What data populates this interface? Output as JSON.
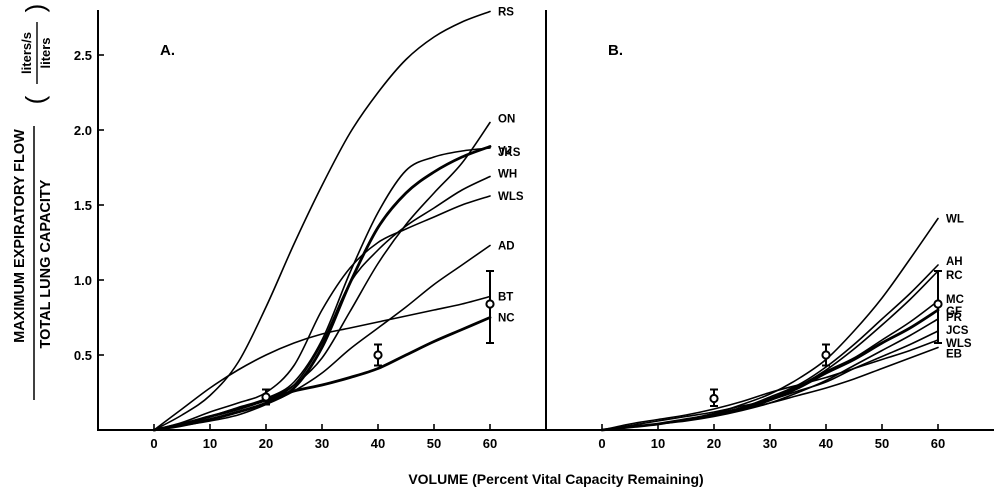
{
  "y_axis": {
    "title_top": "MAXIMUM EXPIRATORY FLOW",
    "title_bottom": "TOTAL LUNG CAPACITY",
    "unit_top": "liters/s",
    "unit_bottom": "liters",
    "paren_open": "(",
    "paren_close": ")"
  },
  "x_axis": {
    "title": "VOLUME (Percent Vital Capacity Remaining)"
  },
  "chart_data": [
    {
      "type": "line",
      "panel": "A.",
      "xlim": [
        -10,
        70
      ],
      "ylim": [
        0,
        2.8
      ],
      "x_ticks": [
        0,
        10,
        20,
        30,
        40,
        50,
        60
      ],
      "x_tick_labels": [
        "0",
        "10",
        "20",
        "30",
        "40",
        "50",
        "60"
      ],
      "y_ticks": [
        0.5,
        1.0,
        1.5,
        2.0,
        2.5
      ],
      "y_tick_labels": [
        "0.5",
        "1.0",
        "1.5",
        "2.0",
        "2.5"
      ],
      "series": [
        {
          "name": "RS",
          "heavy": false,
          "x": [
            0,
            5,
            10,
            15,
            20,
            25,
            30,
            35,
            40,
            45,
            50,
            55,
            60
          ],
          "y": [
            0,
            0.1,
            0.23,
            0.45,
            0.82,
            1.24,
            1.63,
            1.98,
            2.25,
            2.47,
            2.62,
            2.72,
            2.79
          ]
        },
        {
          "name": "ON",
          "heavy": false,
          "x": [
            0,
            5,
            10,
            15,
            20,
            25,
            30,
            35,
            40,
            45,
            50,
            55,
            60
          ],
          "y": [
            0,
            0.04,
            0.09,
            0.14,
            0.2,
            0.3,
            0.48,
            0.79,
            1.11,
            1.37,
            1.58,
            1.78,
            2.05
          ]
        },
        {
          "name": "VJ",
          "heavy": true,
          "x": [
            0,
            5,
            10,
            15,
            20,
            25,
            30,
            35,
            40,
            45,
            50,
            55,
            60
          ],
          "y": [
            0,
            0.03,
            0.07,
            0.12,
            0.18,
            0.28,
            0.55,
            0.98,
            1.35,
            1.58,
            1.72,
            1.82,
            1.89
          ]
        },
        {
          "name": "JKS",
          "heavy": false,
          "x": [
            0,
            5,
            10,
            15,
            20,
            25,
            30,
            35,
            40,
            45,
            50,
            55,
            60
          ],
          "y": [
            0,
            0.04,
            0.09,
            0.15,
            0.21,
            0.32,
            0.6,
            1.05,
            1.45,
            1.73,
            1.82,
            1.86,
            1.88
          ]
        },
        {
          "name": "WH",
          "heavy": false,
          "x": [
            0,
            5,
            10,
            15,
            20,
            25,
            30,
            35,
            40,
            45,
            50,
            55,
            60
          ],
          "y": [
            0,
            0.04,
            0.09,
            0.14,
            0.2,
            0.3,
            0.58,
            0.98,
            1.2,
            1.36,
            1.48,
            1.6,
            1.69
          ]
        },
        {
          "name": "WLS",
          "heavy": false,
          "x": [
            0,
            5,
            10,
            15,
            20,
            25,
            30,
            35,
            40,
            45,
            50,
            55,
            60
          ],
          "y": [
            0,
            0.05,
            0.12,
            0.18,
            0.25,
            0.43,
            0.8,
            1.08,
            1.25,
            1.34,
            1.42,
            1.5,
            1.56
          ]
        },
        {
          "name": "AD",
          "heavy": false,
          "x": [
            0,
            5,
            10,
            15,
            20,
            25,
            30,
            35,
            40,
            45,
            50,
            55,
            60
          ],
          "y": [
            0,
            0.03,
            0.06,
            0.1,
            0.17,
            0.26,
            0.38,
            0.54,
            0.68,
            0.82,
            0.97,
            1.1,
            1.23
          ]
        },
        {
          "name": "BT",
          "heavy": false,
          "x": [
            0,
            5,
            10,
            15,
            20,
            25,
            30,
            35,
            40,
            45,
            50,
            55,
            60
          ],
          "y": [
            0,
            0.14,
            0.28,
            0.4,
            0.5,
            0.58,
            0.64,
            0.68,
            0.72,
            0.76,
            0.8,
            0.84,
            0.89
          ]
        },
        {
          "name": "NC",
          "heavy": true,
          "x": [
            0,
            5,
            10,
            15,
            20,
            25,
            30,
            35,
            40,
            45,
            50,
            55,
            60
          ],
          "y": [
            0,
            0.04,
            0.09,
            0.14,
            0.2,
            0.26,
            0.3,
            0.35,
            0.41,
            0.5,
            0.59,
            0.67,
            0.75
          ]
        }
      ],
      "points": [
        {
          "x": 20,
          "y": 0.22,
          "err_low": 0.17,
          "err_high": 0.27
        },
        {
          "x": 40,
          "y": 0.5,
          "err_low": 0.43,
          "err_high": 0.57
        },
        {
          "x": 60,
          "y": 0.84,
          "err_low": 0.58,
          "err_high": 1.06
        }
      ]
    },
    {
      "type": "line",
      "panel": "B.",
      "xlim": [
        -10,
        70
      ],
      "ylim": [
        0,
        2.8
      ],
      "x_ticks": [
        0,
        10,
        20,
        30,
        40,
        50,
        60
      ],
      "x_tick_labels": [
        "0",
        "10",
        "20",
        "30",
        "40",
        "50",
        "60"
      ],
      "series": [
        {
          "name": "WL",
          "heavy": false,
          "x": [
            0,
            5,
            10,
            15,
            20,
            25,
            30,
            35,
            40,
            45,
            50,
            55,
            60
          ],
          "y": [
            0,
            0.02,
            0.04,
            0.07,
            0.11,
            0.17,
            0.24,
            0.34,
            0.47,
            0.66,
            0.88,
            1.14,
            1.41
          ]
        },
        {
          "name": "AH",
          "heavy": false,
          "x": [
            0,
            5,
            10,
            15,
            20,
            25,
            30,
            35,
            40,
            45,
            50,
            55,
            60
          ],
          "y": [
            0,
            0.02,
            0.04,
            0.07,
            0.11,
            0.15,
            0.22,
            0.3,
            0.42,
            0.57,
            0.74,
            0.91,
            1.1
          ]
        },
        {
          "name": "RC",
          "heavy": false,
          "x": [
            0,
            5,
            10,
            15,
            20,
            25,
            30,
            35,
            40,
            45,
            50,
            55,
            60
          ],
          "y": [
            0,
            0.02,
            0.04,
            0.07,
            0.1,
            0.15,
            0.21,
            0.29,
            0.4,
            0.54,
            0.7,
            0.87,
            1.06
          ]
        },
        {
          "name": "MC",
          "heavy": false,
          "x": [
            0,
            5,
            10,
            15,
            20,
            25,
            30,
            35,
            40,
            45,
            50,
            55,
            60
          ],
          "y": [
            0,
            0.02,
            0.04,
            0.07,
            0.1,
            0.14,
            0.2,
            0.28,
            0.39,
            0.48,
            0.6,
            0.72,
            0.86
          ]
        },
        {
          "name": "GF",
          "heavy": true,
          "x": [
            0,
            5,
            10,
            15,
            20,
            25,
            30,
            35,
            40,
            45,
            50,
            55,
            60
          ],
          "y": [
            0,
            0.02,
            0.04,
            0.07,
            0.1,
            0.14,
            0.2,
            0.28,
            0.38,
            0.47,
            0.58,
            0.68,
            0.8
          ]
        },
        {
          "name": "PR",
          "heavy": false,
          "x": [
            0,
            5,
            10,
            15,
            20,
            25,
            30,
            35,
            40,
            45,
            50,
            55,
            60
          ],
          "y": [
            0,
            0.02,
            0.04,
            0.06,
            0.09,
            0.13,
            0.18,
            0.25,
            0.33,
            0.43,
            0.53,
            0.63,
            0.74
          ]
        },
        {
          "name": "JCS",
          "heavy": false,
          "x": [
            0,
            5,
            10,
            15,
            20,
            25,
            30,
            35,
            40,
            45,
            50,
            55,
            60
          ],
          "y": [
            0,
            0.03,
            0.06,
            0.09,
            0.12,
            0.16,
            0.2,
            0.26,
            0.32,
            0.41,
            0.49,
            0.57,
            0.66
          ]
        },
        {
          "name": "WLS",
          "heavy": false,
          "x": [
            0,
            5,
            10,
            15,
            20,
            25,
            30,
            35,
            40,
            45,
            50,
            55,
            60
          ],
          "y": [
            0,
            0.04,
            0.07,
            0.1,
            0.14,
            0.19,
            0.25,
            0.3,
            0.35,
            0.41,
            0.47,
            0.53,
            0.6
          ]
        },
        {
          "name": "EB",
          "heavy": false,
          "x": [
            0,
            5,
            10,
            15,
            20,
            25,
            30,
            35,
            40,
            45,
            50,
            55,
            60
          ],
          "y": [
            0,
            0.02,
            0.04,
            0.07,
            0.1,
            0.14,
            0.18,
            0.23,
            0.28,
            0.34,
            0.41,
            0.48,
            0.55
          ]
        }
      ],
      "points": [
        {
          "x": 20,
          "y": 0.21,
          "err_low": 0.16,
          "err_high": 0.27
        },
        {
          "x": 40,
          "y": 0.5,
          "err_low": 0.43,
          "err_high": 0.57
        },
        {
          "x": 60,
          "y": 0.84,
          "err_low": 0.58,
          "err_high": 1.06
        }
      ]
    }
  ]
}
